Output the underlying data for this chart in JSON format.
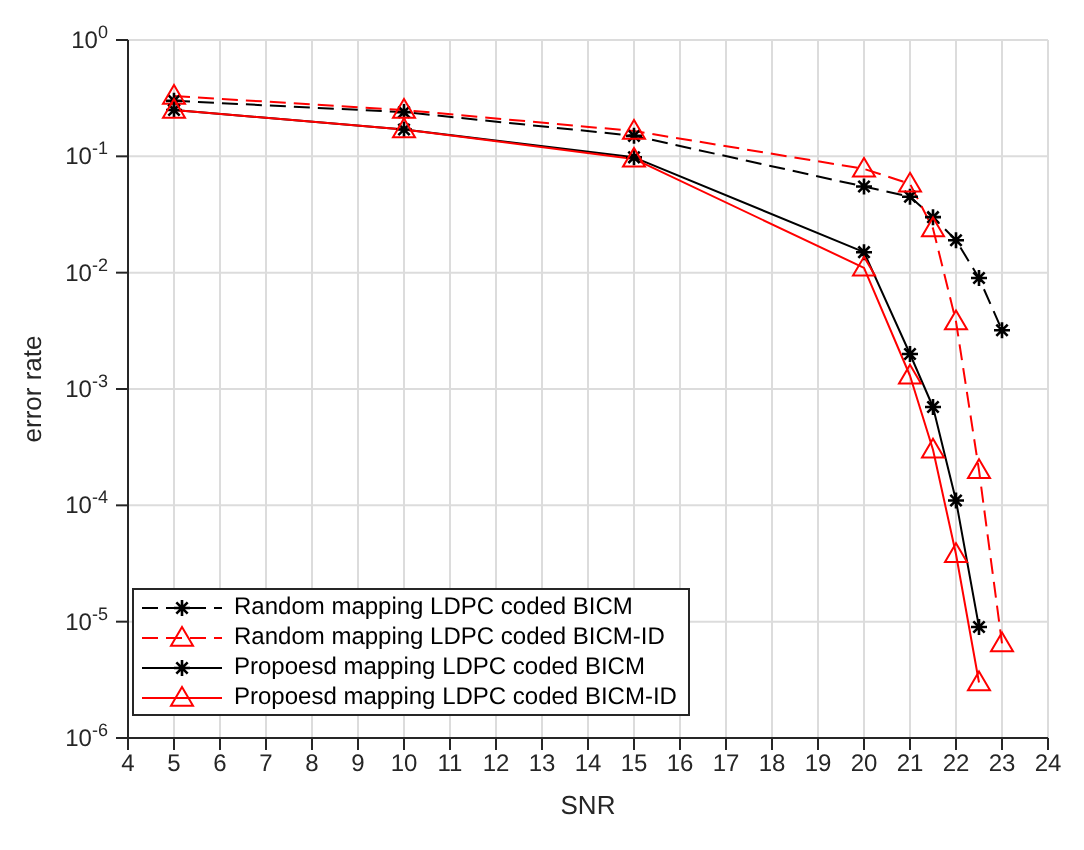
{
  "chart_data": {
    "type": "line",
    "xlabel": "SNR",
    "ylabel": "error rate",
    "log": "y",
    "grid": true,
    "legend": "bottom left",
    "xlim": [
      4,
      24
    ],
    "xticks": [
      4,
      5,
      6,
      7,
      8,
      9,
      10,
      11,
      12,
      13,
      14,
      15,
      16,
      17,
      18,
      19,
      20,
      21,
      22,
      23,
      24
    ],
    "ylim": [
      1e-06,
      1
    ],
    "yticks": [
      {
        "value": 1e-06,
        "label": "10$^{-6}$"
      },
      {
        "value": 1e-05,
        "label": "10$^{-5}$"
      },
      {
        "value": 0.0001,
        "label": "10$^{-4}$"
      },
      {
        "value": 0.001,
        "label": "10$^{-3}$"
      },
      {
        "value": 0.01,
        "label": "10$^{-2}$"
      },
      {
        "value": 0.1,
        "label": "10$^{-1}$"
      },
      {
        "value": 1,
        "label": "10$^{0}$"
      }
    ],
    "series": [
      {
        "name": "Random mapping LDPC coded BICM",
        "color": "#000000",
        "marker": "cross",
        "line_style": "dashed",
        "x": [
          5,
          10,
          15,
          20,
          21,
          21.5,
          22,
          22.5,
          23
        ],
        "values": [
          0.3,
          0.24,
          0.15,
          0.055,
          0.045,
          0.03,
          0.019,
          0.009,
          0.0032
        ]
      },
      {
        "name": "Random mapping LDPC coded BICM-ID",
        "color": "#ff0000",
        "marker": "triangle",
        "line_style": "dashed",
        "x": [
          5,
          10,
          15,
          20,
          21,
          21.5,
          22,
          22.5,
          23
        ],
        "values": [
          0.33,
          0.25,
          0.165,
          0.078,
          0.058,
          0.024,
          0.0038,
          0.0002,
          6.5e-06
        ]
      },
      {
        "name": "Propoesd mapping LDPC coded BICM",
        "color": "#000000",
        "marker": "cross",
        "line_style": "solid",
        "x": [
          5,
          10,
          15,
          20,
          21,
          21.5,
          22,
          22.5
        ],
        "values": [
          0.25,
          0.17,
          0.098,
          0.015,
          0.002,
          0.0007,
          0.00011,
          9e-06
        ]
      },
      {
        "name": "Propoesd mapping LDPC coded BICM-ID",
        "color": "#ff0000",
        "marker": "triangle",
        "line_style": "solid",
        "x": [
          5,
          10,
          15,
          20,
          21,
          21.5,
          22,
          22.5
        ],
        "values": [
          0.25,
          0.17,
          0.095,
          0.011,
          0.0013,
          0.0003,
          3.8e-05,
          3e-06
        ]
      }
    ]
  }
}
